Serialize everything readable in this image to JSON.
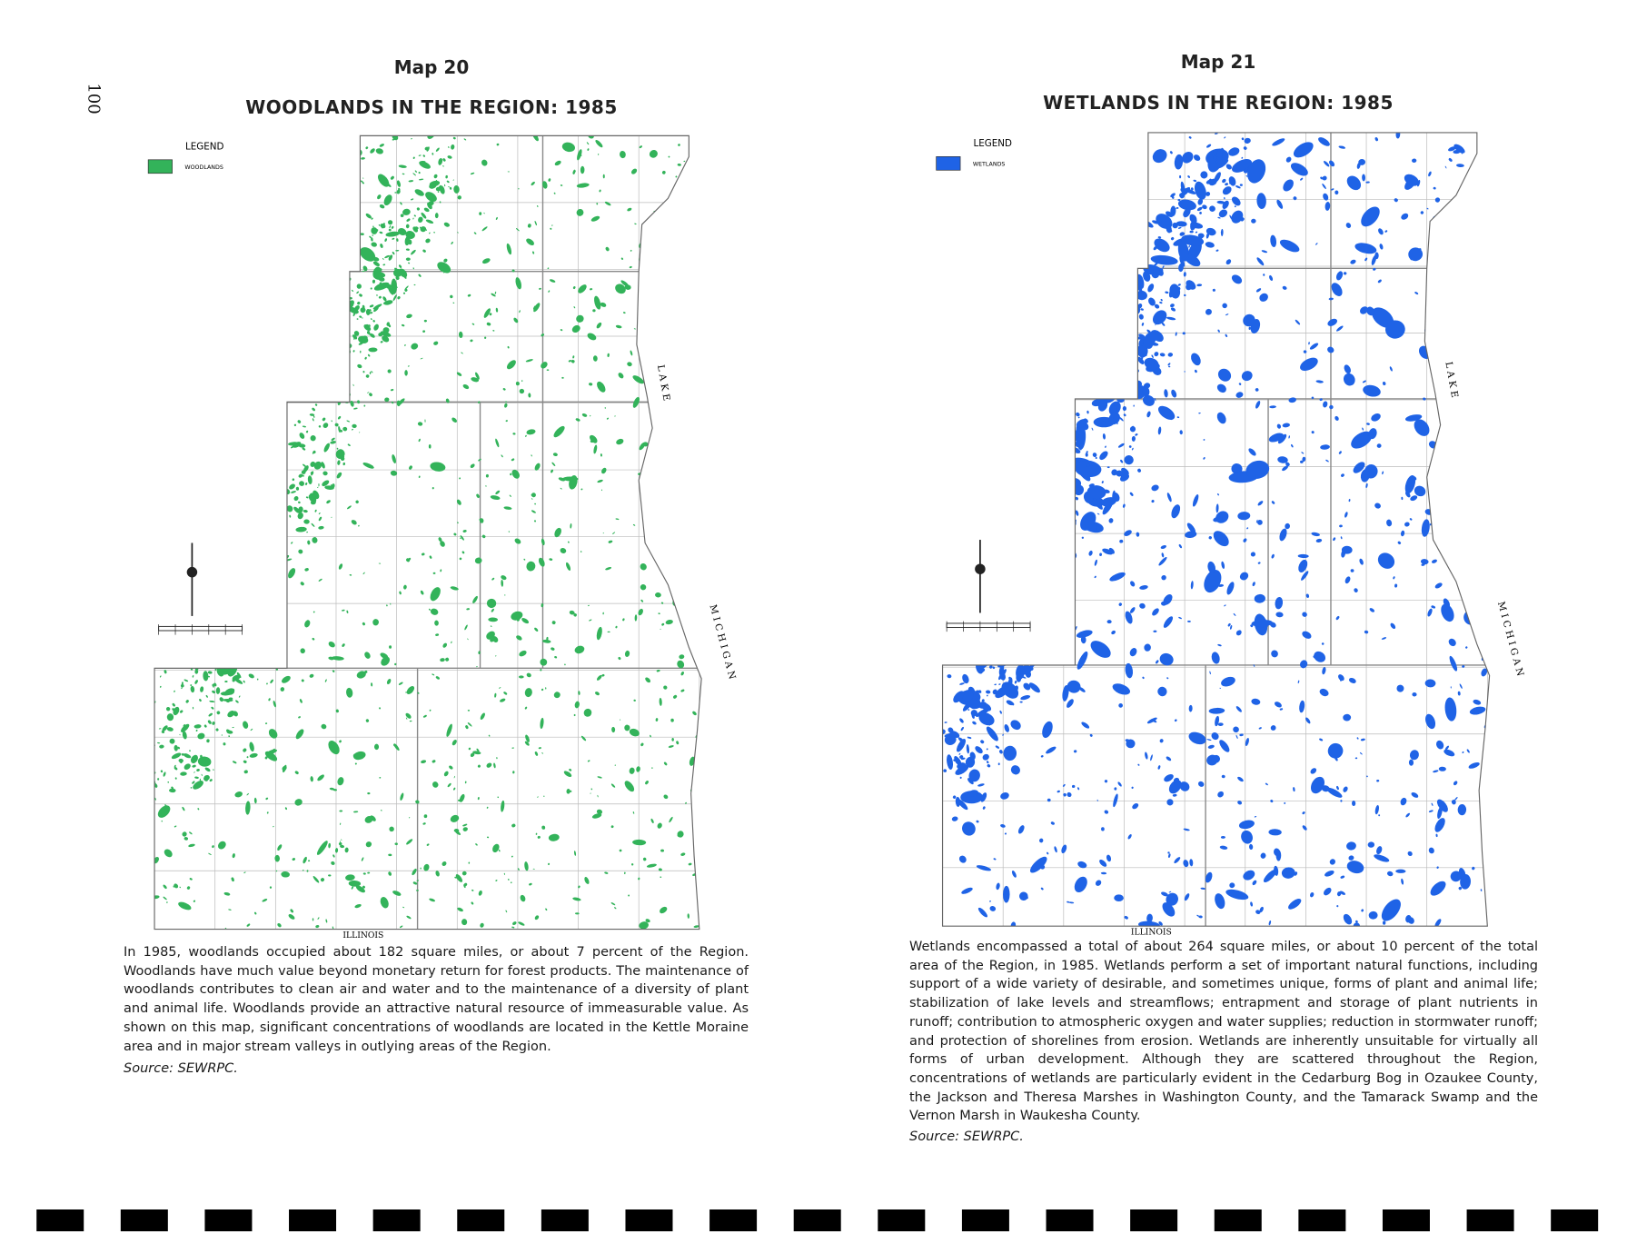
{
  "page_number": "100",
  "maps": [
    {
      "number": "Map 20",
      "title": "WOODLANDS IN THE REGION: 1985",
      "legend_title": "LEGEND",
      "legend_item": "WOODLANDS",
      "labels": {
        "lake": "LAKE",
        "michigan": "MICHIGAN",
        "illinois": "ILLINOIS"
      },
      "caption": "In 1985, woodlands occupied about 182 square miles, or about 7 percent of the Region. Woodlands have much value beyond monetary return for forest products. The maintenance of woodlands contributes to clean air and water and to the maintenance of a diversity of plant and animal life. Woodlands provide an attractive natural resource of immeasurable value. As shown on this map, significant concentrations of woodlands are located in the Kettle Moraine area and in major stream valleys in outlying areas of the Region.",
      "source": "Source: SEWRPC."
    },
    {
      "number": "Map 21",
      "title": "WETLANDS IN THE REGION: 1985",
      "legend_title": "LEGEND",
      "legend_item": "WETLANDS",
      "labels": {
        "lake": "LAKE",
        "michigan": "MICHIGAN",
        "illinois": "ILLINOIS"
      },
      "caption": "Wetlands encompassed a total of about 264 square miles, or about 10 percent of the total area of the Region, in 1985. Wetlands perform a set of important natural functions, including support of a wide variety of desirable, and sometimes unique, forms of plant and animal life; stabilization of lake levels and streamflows; entrapment and storage of plant nutrients in runoff; contribution to atmospheric oxygen and water supplies; reduction in stormwater runoff; and protection of shorelines from erosion. Wetlands are inherently unsuitable for virtually all forms of urban development. Although they are scattered throughout the Region, concentrations of wetlands are particularly evident in the Cedarburg Bog in Ozaukee County, the Jackson and Theresa Marshes in Washington County, and the Tamarack Swamp and the Vernon Marsh in Waukesha County.",
      "source": "Source: SEWRPC."
    }
  ]
}
